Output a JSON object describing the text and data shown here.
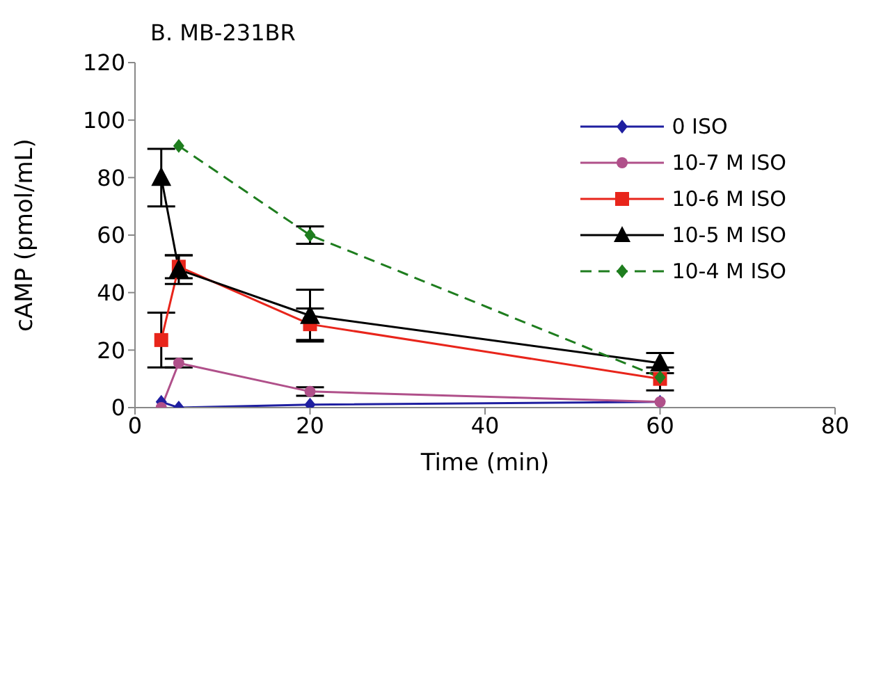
{
  "chart_data": {
    "type": "line",
    "title": "B. MB-231BR",
    "xlabel": "Time (min)",
    "ylabel": "cAMP (pmol/mL)",
    "xlim": [
      0,
      80
    ],
    "xticks": [
      0,
      20,
      40,
      60,
      80
    ],
    "ylim": [
      0,
      120
    ],
    "yticks": [
      0,
      20,
      40,
      60,
      80,
      100,
      120
    ],
    "grid": false,
    "legend": "top right",
    "series": [
      {
        "name": "0 ISO",
        "color": "#1f1fa0",
        "marker": "diamond",
        "line_style": "solid",
        "x": [
          3,
          5,
          20,
          60
        ],
        "values": [
          2,
          0,
          1,
          2
        ]
      },
      {
        "name": "10-7 M ISO",
        "color": "#b0508a",
        "marker": "circle",
        "line_style": "solid",
        "x": [
          3,
          5,
          20,
          60
        ],
        "values": [
          0,
          15.5,
          5.6,
          2
        ],
        "errors": [
          null,
          1.5,
          1.5,
          null
        ]
      },
      {
        "name": "10-6 M ISO",
        "color": "#e8251b",
        "marker": "square",
        "line_style": "solid",
        "x": [
          3,
          5,
          20,
          60
        ],
        "values": [
          23.5,
          49,
          29,
          10
        ],
        "errors": [
          9.5,
          4,
          5.5,
          4
        ]
      },
      {
        "name": "10-5 M ISO",
        "color": "#000000",
        "marker": "triangle",
        "line_style": "solid",
        "x": [
          3,
          5,
          20,
          60
        ],
        "values": [
          80,
          48,
          32,
          15.5
        ],
        "errors": [
          10,
          5,
          9,
          3.5
        ]
      },
      {
        "name": "10-4 M ISO",
        "color": "#1e7d1e",
        "marker": "diamond",
        "line_style": "dashed",
        "x": [
          5,
          20,
          60
        ],
        "values": [
          91,
          60,
          10.5
        ],
        "errors": [
          null,
          3,
          null
        ]
      }
    ]
  }
}
